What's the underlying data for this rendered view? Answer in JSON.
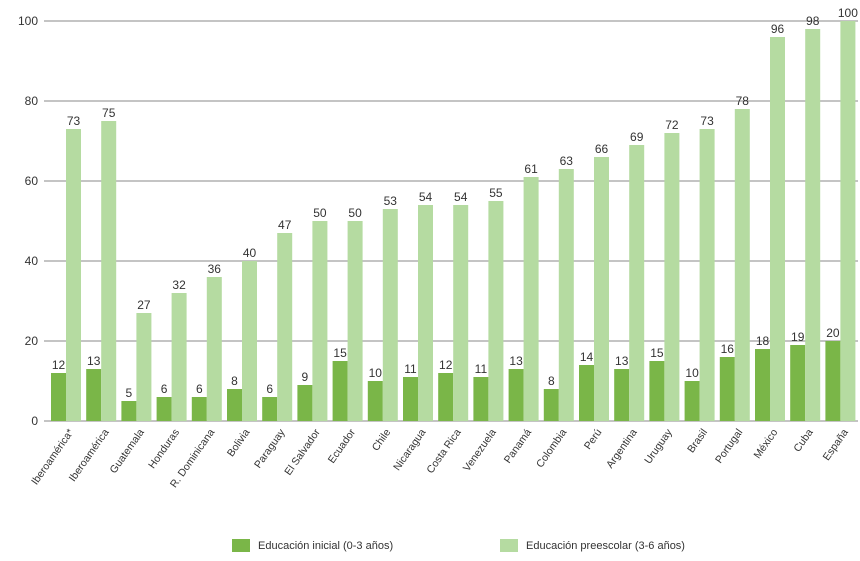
{
  "colors": {
    "inicial": "#7ab648",
    "preescolar": "#b5dba1",
    "grid": "#8a8a8a"
  },
  "chart_data": {
    "type": "bar",
    "categories": [
      "Iberoamérica*",
      "Iberoamérica",
      "Guatemala",
      "Honduras",
      "R. Dominicana",
      "Bolivia",
      "Paraguay",
      "El Salvador",
      "Ecuador",
      "Chile",
      "Nicaragua",
      "Costa Rica",
      "Venezuela",
      "Panamá",
      "Colombia",
      "Perú",
      "Argentina",
      "Uruguay",
      "Brasil",
      "Portugal",
      "México",
      "Cuba",
      "España"
    ],
    "series": [
      {
        "name": "Educación inicial (0-3 años)",
        "values": [
          12,
          13,
          5,
          6,
          6,
          8,
          6,
          9,
          15,
          10,
          11,
          12,
          11,
          13,
          8,
          14,
          13,
          15,
          10,
          16,
          18,
          19,
          20
        ]
      },
      {
        "name": "Educación preescolar (3-6 años)",
        "values": [
          73,
          75,
          27,
          32,
          36,
          40,
          47,
          50,
          50,
          53,
          54,
          54,
          55,
          61,
          63,
          66,
          69,
          72,
          73,
          78,
          96,
          98,
          100
        ]
      }
    ],
    "yticks": [
      0,
      20,
      40,
      60,
      80,
      100
    ],
    "ylim": [
      0,
      100
    ],
    "grid": true,
    "legend_position": "bottom"
  }
}
